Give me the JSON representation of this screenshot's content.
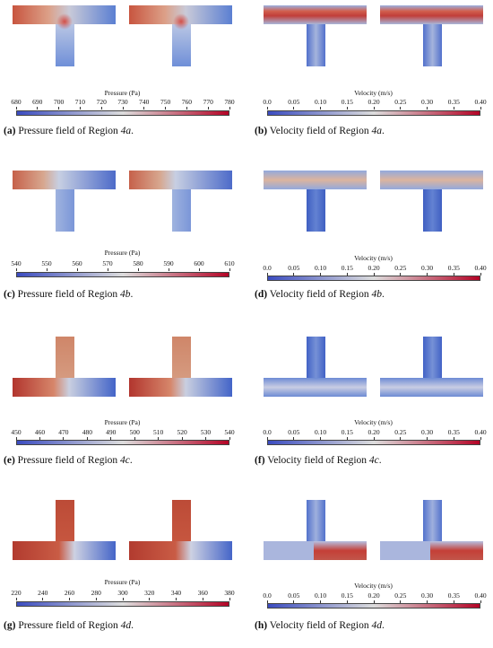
{
  "colormap": {
    "low": "#3b4cc0",
    "mid": "#dddddd",
    "high": "#b40426"
  },
  "panels": [
    {
      "id": "a",
      "letter": "a",
      "field": "pressure",
      "geometry": "t-down",
      "cbar_title": "Pressure (Pa)",
      "ticks": [
        "680",
        "690",
        "700",
        "710",
        "720",
        "730",
        "740",
        "750",
        "760",
        "770",
        "780"
      ],
      "caption_prefix": "Pressure field of Region ",
      "caption_region": "4a",
      "caption_suffix": "."
    },
    {
      "id": "b",
      "letter": "b",
      "field": "velocity",
      "geometry": "t-down",
      "cbar_title": "Velocity (m/s)",
      "ticks": [
        "0.0",
        "0.05",
        "0.10",
        "0.15",
        "0.20",
        "0.25",
        "0.30",
        "0.35",
        "0.40"
      ],
      "caption_prefix": "Velocity field of Region ",
      "caption_region": "4a",
      "caption_suffix": "."
    },
    {
      "id": "c",
      "letter": "c",
      "field": "pressure",
      "geometry": "t-down",
      "cbar_title": "Pressure (Pa)",
      "ticks": [
        "540",
        "550",
        "560",
        "570",
        "580",
        "590",
        "600",
        "610"
      ],
      "caption_prefix": "Pressure field of Region ",
      "caption_region": "4b",
      "caption_suffix": "."
    },
    {
      "id": "d",
      "letter": "d",
      "field": "velocity",
      "geometry": "t-down",
      "cbar_title": "Velocity (m/s)",
      "ticks": [
        "0.0",
        "0.05",
        "0.10",
        "0.15",
        "0.20",
        "0.25",
        "0.30",
        "0.35",
        "0.40"
      ],
      "caption_prefix": "Velocity field of Region ",
      "caption_region": "4b",
      "caption_suffix": "."
    },
    {
      "id": "e",
      "letter": "e",
      "field": "pressure",
      "geometry": "t-up",
      "cbar_title": "Pressure (Pa)",
      "ticks": [
        "450",
        "460",
        "470",
        "480",
        "490",
        "500",
        "510",
        "520",
        "530",
        "540"
      ],
      "caption_prefix": "Pressure field of Region ",
      "caption_region": "4c",
      "caption_suffix": "."
    },
    {
      "id": "f",
      "letter": "f",
      "field": "velocity",
      "geometry": "t-up",
      "cbar_title": "Velocity (m/s)",
      "ticks": [
        "0.0",
        "0.05",
        "0.10",
        "0.15",
        "0.20",
        "0.25",
        "0.30",
        "0.35",
        "0.40"
      ],
      "caption_prefix": "Velocity field of Region ",
      "caption_region": "4c",
      "caption_suffix": "."
    },
    {
      "id": "g",
      "letter": "g",
      "field": "pressure",
      "geometry": "t-up",
      "cbar_title": "Pressure (Pa)",
      "ticks": [
        "220",
        "240",
        "260",
        "280",
        "300",
        "320",
        "340",
        "360",
        "380"
      ],
      "caption_prefix": "Pressure field of Region ",
      "caption_region": "4d",
      "caption_suffix": "."
    },
    {
      "id": "h",
      "letter": "h",
      "field": "velocity",
      "geometry": "t-up",
      "cbar_title": "Velocity (m/s)",
      "ticks": [
        "0.0",
        "0.05",
        "0.10",
        "0.15",
        "0.20",
        "0.25",
        "0.30",
        "0.35",
        "0.40"
      ],
      "caption_prefix": "Velocity field of Region ",
      "caption_region": "4d",
      "caption_suffix": "."
    }
  ]
}
